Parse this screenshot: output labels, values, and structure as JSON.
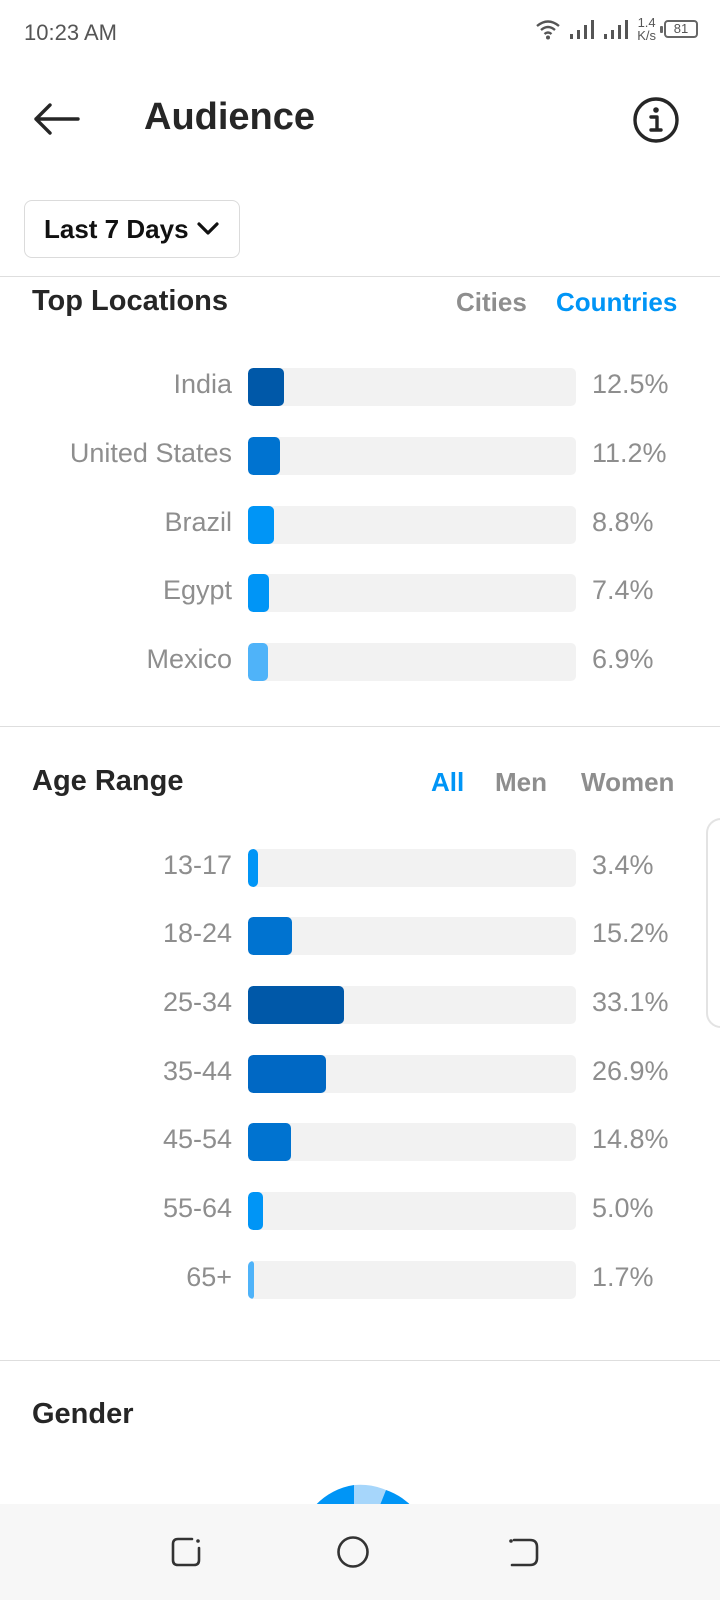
{
  "status": {
    "time": "10:23 AM",
    "speed_value": "1.4",
    "speed_unit": "K/s",
    "battery": "81"
  },
  "header": {
    "title": "Audience"
  },
  "filter": {
    "selected": "Last 7 Days"
  },
  "top_locations": {
    "title": "Top Locations",
    "tabs": [
      {
        "label": "Cities",
        "active": false
      },
      {
        "label": "Countries",
        "active": true
      }
    ],
    "items": [
      {
        "label": "India",
        "value": "12.5%",
        "pct": 12.5,
        "color": "#0058a8"
      },
      {
        "label": "United States",
        "value": "11.2%",
        "pct": 11.2,
        "color": "#0073d0"
      },
      {
        "label": "Brazil",
        "value": "8.8%",
        "pct": 8.8,
        "color": "#0095f6"
      },
      {
        "label": "Egypt",
        "value": "7.4%",
        "pct": 7.4,
        "color": "#0095f6"
      },
      {
        "label": "Mexico",
        "value": "6.9%",
        "pct": 6.9,
        "color": "#4fb3f9"
      }
    ]
  },
  "age_range": {
    "title": "Age Range",
    "tabs": [
      {
        "label": "All",
        "active": true
      },
      {
        "label": "Men",
        "active": false
      },
      {
        "label": "Women",
        "active": false
      }
    ],
    "items": [
      {
        "label": "13-17",
        "value": "3.4%",
        "pct": 3.4,
        "color": "#0095f6"
      },
      {
        "label": "18-24",
        "value": "15.2%",
        "pct": 15.2,
        "color": "#0073d0"
      },
      {
        "label": "25-34",
        "value": "33.1%",
        "pct": 33.1,
        "color": "#0058a8"
      },
      {
        "label": "35-44",
        "value": "26.9%",
        "pct": 26.9,
        "color": "#0068c4"
      },
      {
        "label": "45-54",
        "value": "14.8%",
        "pct": 14.8,
        "color": "#0073d0"
      },
      {
        "label": "55-64",
        "value": "5.0%",
        "pct": 5.0,
        "color": "#0095f6"
      },
      {
        "label": "65+",
        "value": "1.7%",
        "pct": 1.7,
        "color": "#4fb3f9"
      }
    ]
  },
  "gender": {
    "title": "Gender"
  },
  "colors": {
    "accent": "#0095f6",
    "muted": "#8e8e8e",
    "track": "#f2f2f2"
  }
}
